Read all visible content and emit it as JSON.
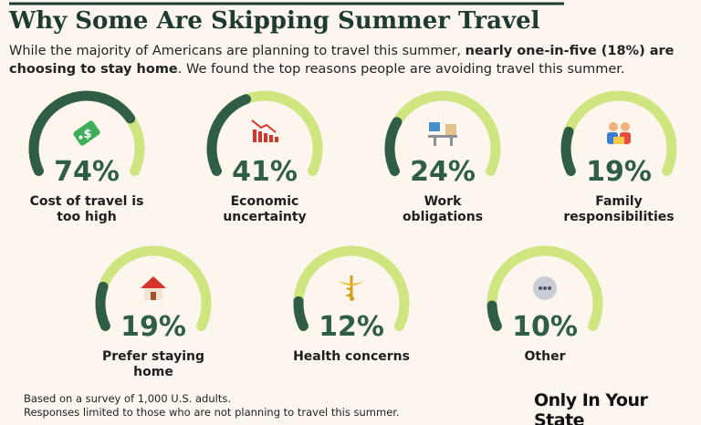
{
  "header": {
    "title": "Why Some Are Skipping Summer Travel",
    "subtitle": [
      "While the majority of Americans are planning to travel this summer, ",
      "nearly one-in-five (18%) are choosing to stay home",
      ". We found the top reasons people are avoiding travel this summer."
    ]
  },
  "chart_data": {
    "type": "gauge",
    "categories": [
      "Cost of travel is\ntoo high",
      "Economic\nuncertainty",
      "Work\nobligations",
      "Family\nresponsibilities",
      "Prefer staying home",
      "Health concerns",
      "Other"
    ],
    "values": [
      74,
      41,
      24,
      19,
      19,
      12,
      10
    ],
    "value_labels": [
      "74%",
      "41%",
      "24%",
      "19%",
      "19%",
      "12%",
      "10%"
    ],
    "ylim": [
      0,
      100
    ],
    "color": "#2f5d45",
    "track_color": "#cfe57f"
  },
  "footer": {
    "notes": [
      "Based on a survey of 1,000 U.S. adults.",
      "Responses limited to those who are not planning to travel this summer."
    ],
    "brand": "Only In Your State"
  }
}
